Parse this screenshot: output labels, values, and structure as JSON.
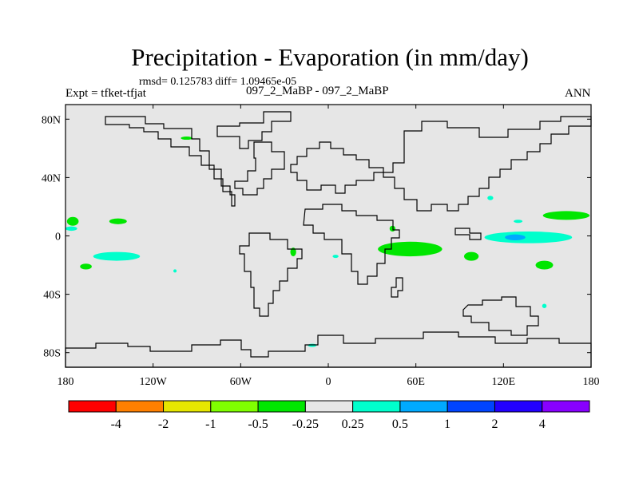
{
  "title": "Precipitation - Evaporation (in mm/day)",
  "stats": "rmsd= 0.125783 diff= 1.09465e-05",
  "expt": "Expt = tfket-tfjat",
  "center_label": "097_2_MaBP - 097_2_MaBP",
  "season": "ANN",
  "chart_data": {
    "type": "heatmap",
    "projection": "cylindrical equidistant (global lon/lat)",
    "x_range": [
      -180,
      180
    ],
    "y_range": [
      -90,
      90
    ],
    "x_ticks": [
      {
        "value": -180,
        "label": "180"
      },
      {
        "value": -120,
        "label": "120W"
      },
      {
        "value": -60,
        "label": "60W"
      },
      {
        "value": 0,
        "label": "0"
      },
      {
        "value": 60,
        "label": "60E"
      },
      {
        "value": 120,
        "label": "120E"
      },
      {
        "value": 180,
        "label": "180"
      }
    ],
    "y_ticks": [
      {
        "value": 80,
        "label": "80N"
      },
      {
        "value": 40,
        "label": "40N"
      },
      {
        "value": 0,
        "label": "0"
      },
      {
        "value": -40,
        "label": "40S"
      },
      {
        "value": -80,
        "label": "80S"
      }
    ],
    "background_color": "#e6e6e6",
    "colorbar": {
      "colors": [
        "#ff0000",
        "#ff8000",
        "#e6e600",
        "#80ff00",
        "#00e600",
        "#e6e6e6",
        "#00ffcc",
        "#00aaff",
        "#0044ff",
        "#2200ff",
        "#8800ff"
      ],
      "labels": [
        "-4",
        "-2",
        "-1",
        "-0.5",
        "-0.25",
        "0.25",
        "0.5",
        "1",
        "2",
        "4"
      ]
    },
    "regions": [
      {
        "name": "central-pacific-north-green",
        "class": "-0.5 to -0.25",
        "color": "#00e600",
        "lon": -175,
        "lat": 10,
        "rlon": 4,
        "rlat": 3
      },
      {
        "name": "pacific-itcz-green",
        "class": "-0.5 to -0.25",
        "color": "#00e600",
        "lon": -144,
        "lat": 10,
        "rlon": 6,
        "rlat": 2
      },
      {
        "name": "arctic-green",
        "class": "-0.5 to -0.25",
        "color": "#00e600",
        "lon": -97,
        "lat": 67,
        "rlon": 4,
        "rlat": 1
      },
      {
        "name": "dateline-equator-cyan",
        "class": "0.25 to 0.5",
        "color": "#00ffcc",
        "lon": -176,
        "lat": 5,
        "rlon": 4,
        "rlat": 1.5
      },
      {
        "name": "east-pacific-cyan",
        "class": "0.25 to 0.5",
        "color": "#00ffcc",
        "lon": -145,
        "lat": -14,
        "rlon": 16,
        "rlat": 3
      },
      {
        "name": "south-pacific-green",
        "class": "-0.5 to -0.25",
        "color": "#00e600",
        "lon": -166,
        "lat": -21,
        "rlon": 4,
        "rlat": 2
      },
      {
        "name": "south-pacific-cyan-small",
        "class": "0.25 to 0.5",
        "color": "#00ffcc",
        "lon": -105,
        "lat": -24,
        "rlon": 1,
        "rlat": 0.7
      },
      {
        "name": "south-america-green",
        "class": "-0.5 to -0.25",
        "color": "#00e600",
        "lon": -24,
        "lat": -11,
        "rlon": 2,
        "rlat": 3
      },
      {
        "name": "atlantic-cyan",
        "class": "0.25 to 0.5",
        "color": "#00ffcc",
        "lon": 5,
        "lat": -14,
        "rlon": 2,
        "rlat": 1
      },
      {
        "name": "southern-ocean-cyan",
        "class": "0.25 to 0.5",
        "color": "#00ffcc",
        "lon": -11,
        "lat": -75,
        "rlon": 3,
        "rlat": 1
      },
      {
        "name": "africa-north-green",
        "class": "-0.5 to -0.25",
        "color": "#00e600",
        "lon": 44,
        "lat": 5,
        "rlon": 2,
        "rlat": 2
      },
      {
        "name": "indian-ocean-green",
        "class": "-0.5 to -0.25",
        "color": "#00e600",
        "lon": 56,
        "lat": -9,
        "rlon": 22,
        "rlat": 5
      },
      {
        "name": "indian-ocean-green-east",
        "class": "-0.5 to -0.25",
        "color": "#00e600",
        "lon": 98,
        "lat": -14,
        "rlon": 5,
        "rlat": 3
      },
      {
        "name": "maritime-green",
        "class": "-0.5 to -0.25",
        "color": "#00e600",
        "lon": 148,
        "lat": -20,
        "rlon": 6,
        "rlat": 3
      },
      {
        "name": "west-pacific-cyan",
        "class": "0.25 to 0.5",
        "color": "#00ffcc",
        "lon": 137,
        "lat": -1,
        "rlon": 30,
        "rlat": 4
      },
      {
        "name": "west-pacific-blue",
        "class": "0.5 to 1",
        "color": "#00aaff",
        "lon": 128,
        "lat": -1,
        "rlon": 7,
        "rlat": 2
      },
      {
        "name": "north-pacific-green",
        "class": "-0.5 to -0.25",
        "color": "#00e600",
        "lon": 163,
        "lat": 14,
        "rlon": 16,
        "rlat": 3
      },
      {
        "name": "north-pacific-cyan",
        "class": "0.25 to 0.5",
        "color": "#00ffcc",
        "lon": 130,
        "lat": 10,
        "rlon": 3,
        "rlat": 1
      },
      {
        "name": "australia-cyan",
        "class": "0.25 to 0.5",
        "color": "#00ffcc",
        "lon": 148,
        "lat": -48,
        "rlon": 1.5,
        "rlat": 1.5
      },
      {
        "name": "east-asia-cyan",
        "class": "0.25 to 0.5",
        "color": "#00ffcc",
        "lon": 111,
        "lat": 26,
        "rlon": 2,
        "rlat": 1.5
      }
    ]
  }
}
